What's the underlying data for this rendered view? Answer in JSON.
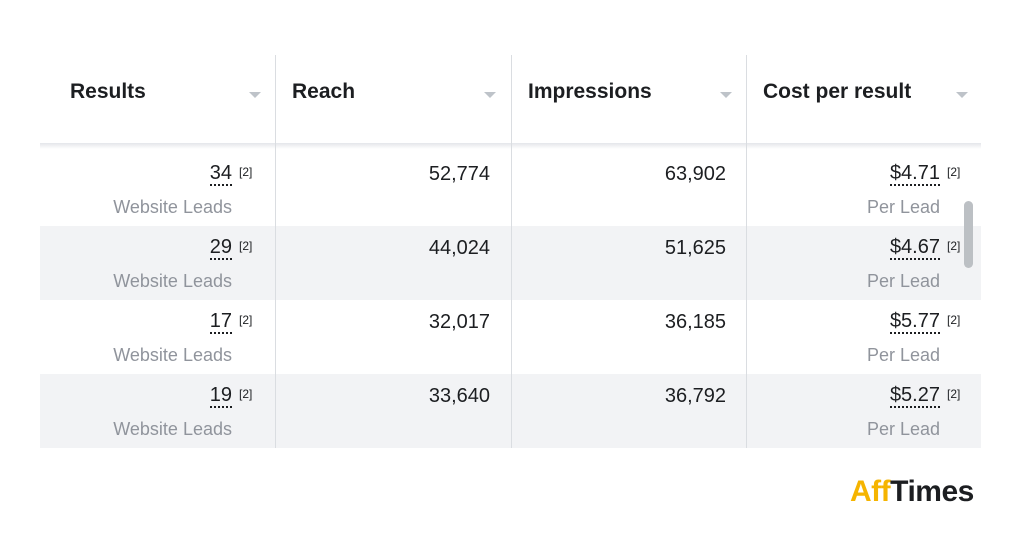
{
  "table": {
    "headers": [
      "Results",
      "Reach",
      "Impressions",
      "Cost per result"
    ],
    "rows": [
      {
        "results": "34",
        "results_note": "[2]",
        "results_label": "Website Leads",
        "reach": "52,774",
        "impressions": "63,902",
        "cost": "$4.71",
        "cost_note": "[2]",
        "cost_label": "Per Lead"
      },
      {
        "results": "29",
        "results_note": "[2]",
        "results_label": "Website Leads",
        "reach": "44,024",
        "impressions": "51,625",
        "cost": "$4.67",
        "cost_note": "[2]",
        "cost_label": "Per Lead"
      },
      {
        "results": "17",
        "results_note": "[2]",
        "results_label": "Website Leads",
        "reach": "32,017",
        "impressions": "36,185",
        "cost": "$5.77",
        "cost_note": "[2]",
        "cost_label": "Per Lead"
      },
      {
        "results": "19",
        "results_note": "[2]",
        "results_label": "Website Leads",
        "reach": "33,640",
        "impressions": "36,792",
        "cost": "$5.27",
        "cost_note": "[2]",
        "cost_label": "Per Lead"
      }
    ]
  },
  "logo": {
    "accent": "Aff",
    "rest": "Times"
  }
}
